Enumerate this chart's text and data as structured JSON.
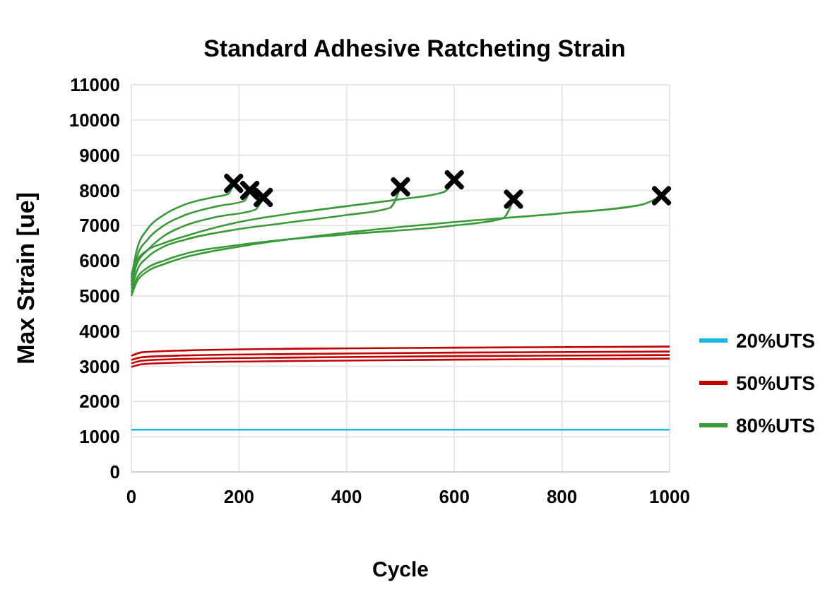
{
  "chart_data": {
    "type": "line",
    "title": "Standard Adhesive Ratcheting Strain",
    "xlabel": "Cycle",
    "ylabel": "Max Strain [ue]",
    "xlim": [
      0,
      1000
    ],
    "xticks": [
      0,
      200,
      400,
      600,
      800,
      1000
    ],
    "ylim": [
      0,
      11000
    ],
    "yticks": [
      0,
      1000,
      2000,
      3000,
      4000,
      5000,
      6000,
      7000,
      8000,
      9000,
      10000,
      11000
    ],
    "grid": true,
    "legend": "right",
    "line_style": "solid",
    "series": [
      {
        "name": "20%UTS",
        "color": "#1fb4e6",
        "x": [
          0,
          250,
          500,
          750,
          1000
        ],
        "values": [
          1200,
          1200,
          1200,
          1200,
          1200
        ]
      },
      {
        "name": "50%UTS",
        "color": "#c00000",
        "x": [
          0,
          20,
          100,
          300,
          600,
          1000
        ],
        "values": [
          3300,
          3400,
          3450,
          3500,
          3530,
          3560
        ]
      },
      {
        "color": "#c00000",
        "x": [
          0,
          20,
          100,
          300,
          600,
          1000
        ],
        "values": [
          3180,
          3260,
          3310,
          3350,
          3390,
          3420
        ]
      },
      {
        "color": "#c00000",
        "x": [
          0,
          20,
          100,
          300,
          600,
          1000
        ],
        "values": [
          3080,
          3160,
          3210,
          3250,
          3290,
          3320
        ]
      },
      {
        "color": "#c00000",
        "x": [
          0,
          20,
          100,
          300,
          600,
          1000
        ],
        "values": [
          2980,
          3060,
          3110,
          3150,
          3190,
          3220
        ]
      },
      {
        "name": "80%UTS",
        "color": "#3a9a3a",
        "x": [
          0,
          10,
          30,
          60,
          100,
          150,
          180,
          190
        ],
        "values": [
          5500,
          6300,
          6900,
          7300,
          7600,
          7800,
          7900,
          8200
        ]
      },
      {
        "color": "#3a9a3a",
        "x": [
          0,
          10,
          30,
          60,
          100,
          160,
          210,
          220
        ],
        "values": [
          5400,
          6100,
          6600,
          7000,
          7300,
          7550,
          7700,
          8000
        ]
      },
      {
        "color": "#3a9a3a",
        "x": [
          0,
          10,
          30,
          60,
          100,
          160,
          230,
          245
        ],
        "values": [
          5300,
          5900,
          6300,
          6700,
          7000,
          7250,
          7450,
          7800
        ]
      },
      {
        "color": "#3a9a3a",
        "x": [
          0,
          10,
          30,
          60,
          100,
          200,
          300,
          400,
          480,
          500
        ],
        "values": [
          5200,
          5700,
          6100,
          6400,
          6600,
          6900,
          7100,
          7300,
          7500,
          8100
        ]
      },
      {
        "color": "#3a9a3a",
        "x": [
          0,
          10,
          30,
          60,
          100,
          200,
          300,
          400,
          500,
          580,
          600
        ],
        "values": [
          5600,
          6000,
          6300,
          6500,
          6700,
          7100,
          7350,
          7550,
          7750,
          7950,
          8300
        ]
      },
      {
        "color": "#3a9a3a",
        "x": [
          0,
          10,
          30,
          60,
          100,
          200,
          400,
          600,
          690,
          710
        ],
        "values": [
          5100,
          5500,
          5800,
          6000,
          6200,
          6450,
          6750,
          7000,
          7200,
          7750
        ]
      },
      {
        "color": "#3a9a3a",
        "x": [
          0,
          10,
          30,
          60,
          100,
          200,
          400,
          600,
          800,
          950,
          985
        ],
        "values": [
          5000,
          5400,
          5700,
          5900,
          6100,
          6400,
          6800,
          7100,
          7350,
          7600,
          7850
        ]
      },
      {
        "type": "scatter",
        "marker": "cross",
        "color": "#000000",
        "x": [
          190,
          220,
          245,
          500,
          600,
          710,
          985
        ],
        "values": [
          8200,
          8000,
          7800,
          8100,
          8300,
          7750,
          7850
        ]
      }
    ]
  }
}
